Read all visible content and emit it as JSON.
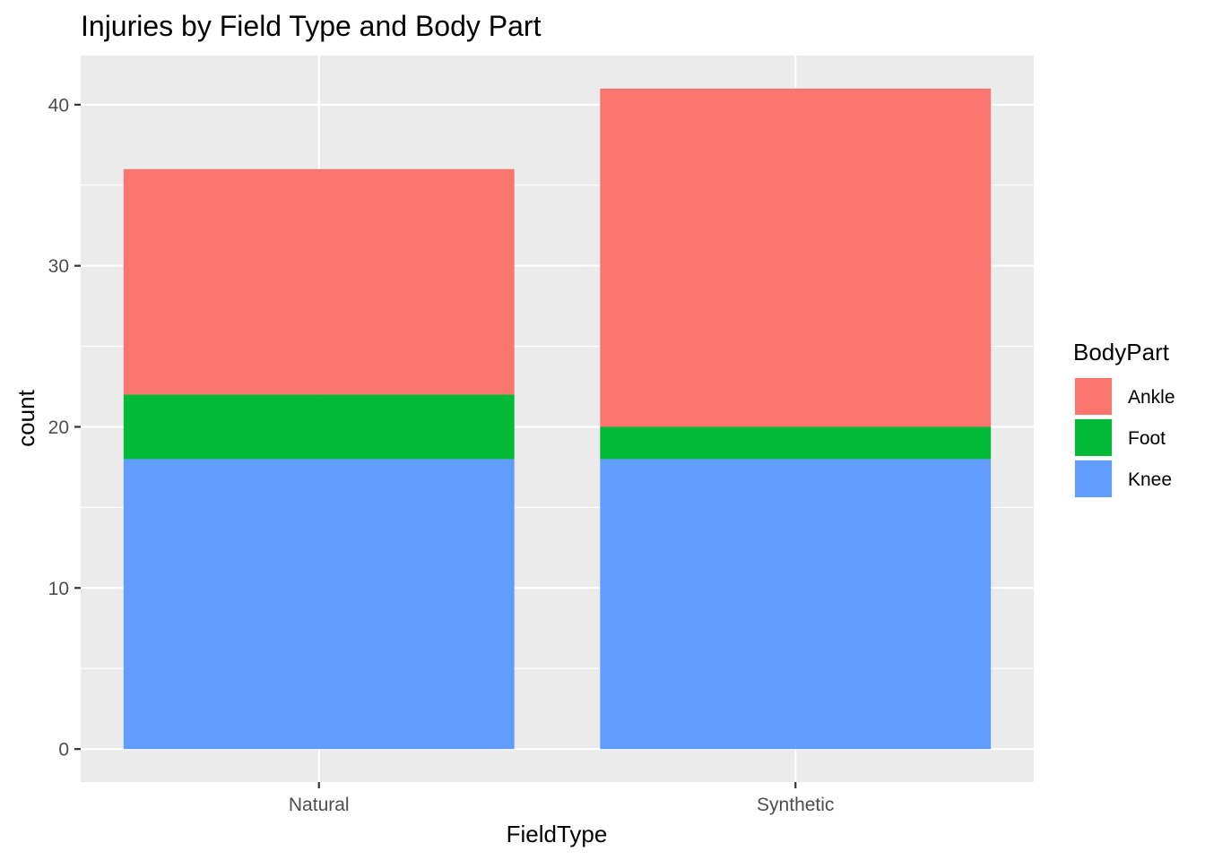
{
  "chart_data": {
    "type": "bar",
    "stacked": true,
    "title": "Injuries by Field Type and Body Part",
    "xlabel": "FieldType",
    "ylabel": "count",
    "categories": [
      "Natural",
      "Synthetic"
    ],
    "series": [
      {
        "name": "Knee",
        "values": [
          18,
          18
        ],
        "color": "#619CFF"
      },
      {
        "name": "Foot",
        "values": [
          4,
          2
        ],
        "color": "#00BA38"
      },
      {
        "name": "Ankle",
        "values": [
          14,
          21
        ],
        "color": "#F8766D"
      }
    ],
    "ylim": [
      -2.05,
      43.05
    ],
    "yticks": [
      0,
      10,
      20,
      30,
      40
    ],
    "yticklabels": [
      "0",
      "10",
      "20",
      "30",
      "40"
    ],
    "grid": true,
    "panel_background": "#EBEBEB",
    "grid_color": "#FFFFFF",
    "legend": {
      "title": "BodyPart",
      "position": "right",
      "entries": [
        {
          "label": "Ankle",
          "color": "#F8766D"
        },
        {
          "label": "Foot",
          "color": "#00BA38"
        },
        {
          "label": "Knee",
          "color": "#619CFF"
        }
      ]
    }
  }
}
